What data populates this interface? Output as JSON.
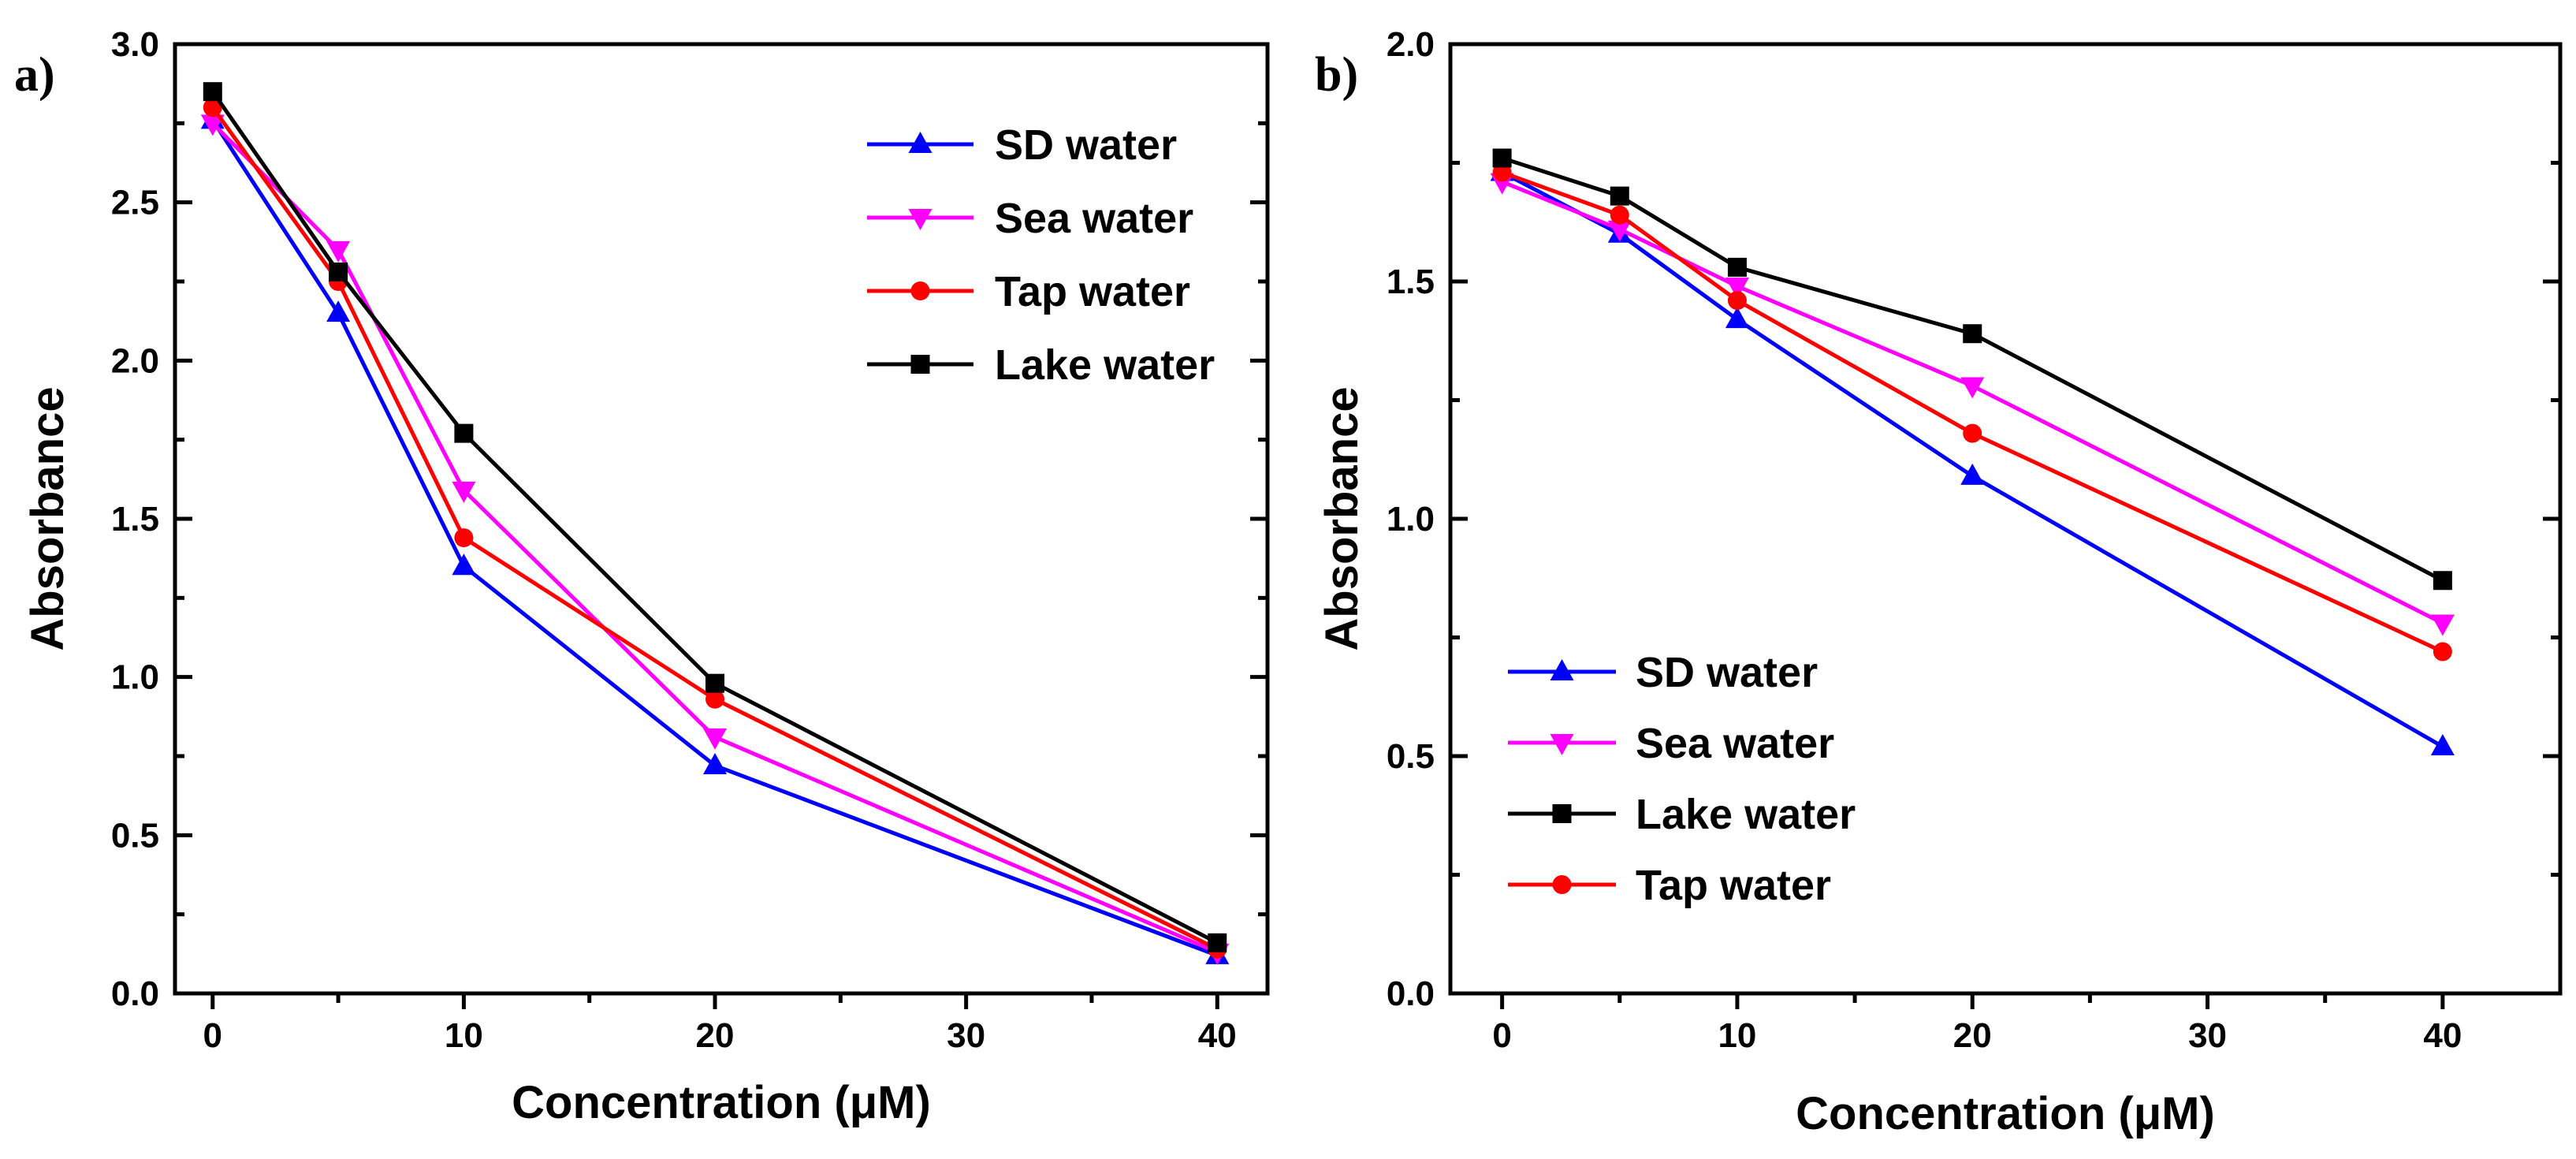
{
  "colors": {
    "SD water": "#0000ff",
    "Sea water": "#ff00ff",
    "Tap water": "#ff0000",
    "Lake water": "#000000"
  },
  "chart_data": [
    {
      "type": "line",
      "panel_label": "a)",
      "xlabel": "Concentration (μM)",
      "ylabel": "Absorbance",
      "xlim": [
        -1.5,
        42
      ],
      "ylim": [
        0.0,
        3.0
      ],
      "xticks": [
        0,
        10,
        20,
        30,
        40
      ],
      "xtick_labels": [
        "0",
        "10",
        "20",
        "30",
        "40"
      ],
      "yticks": [
        0.0,
        0.5,
        1.0,
        1.5,
        2.0,
        2.5,
        3.0
      ],
      "ytick_labels": [
        "0.0",
        "0.5",
        "1.0",
        "1.5",
        "2.0",
        "2.5",
        "3.0"
      ],
      "legend_position": "top-right",
      "legend_order": [
        "SD water",
        "Sea water",
        "Tap water",
        "Lake water"
      ],
      "x": [
        0,
        5,
        10,
        20,
        40
      ],
      "series": [
        {
          "name": "SD water",
          "marker": "triangle-up",
          "values": [
            2.76,
            2.15,
            1.35,
            0.72,
            0.12
          ]
        },
        {
          "name": "Sea water",
          "marker": "triangle-down",
          "values": [
            2.75,
            2.35,
            1.59,
            0.81,
            0.13
          ]
        },
        {
          "name": "Tap water",
          "marker": "circle",
          "values": [
            2.8,
            2.25,
            1.44,
            0.93,
            0.14
          ]
        },
        {
          "name": "Lake water",
          "marker": "square",
          "values": [
            2.85,
            2.28,
            1.77,
            0.98,
            0.16
          ]
        }
      ]
    },
    {
      "type": "line",
      "panel_label": "b)",
      "xlabel": "Concentration (μM)",
      "ylabel": "Absorbance",
      "xlim": [
        -2.2,
        45
      ],
      "ylim": [
        0.0,
        2.0
      ],
      "xticks": [
        0,
        10,
        20,
        30,
        40
      ],
      "xtick_labels": [
        "0",
        "10",
        "20",
        "30",
        "40"
      ],
      "yticks": [
        0.0,
        0.5,
        1.0,
        1.5,
        2.0
      ],
      "ytick_labels": [
        "0.0",
        "0.5",
        "1.0",
        "1.5",
        "2.0"
      ],
      "legend_position": "bottom-left",
      "legend_order": [
        "SD water",
        "Sea water",
        "Lake water",
        "Tap water"
      ],
      "x": [
        0,
        5,
        10,
        20,
        40
      ],
      "series": [
        {
          "name": "SD water",
          "marker": "triangle-up",
          "values": [
            1.73,
            1.6,
            1.42,
            1.09,
            0.52
          ]
        },
        {
          "name": "Sea water",
          "marker": "triangle-down",
          "values": [
            1.71,
            1.61,
            1.49,
            1.28,
            0.78
          ]
        },
        {
          "name": "Tap water",
          "marker": "circle",
          "values": [
            1.73,
            1.64,
            1.46,
            1.18,
            0.72
          ]
        },
        {
          "name": "Lake water",
          "marker": "square",
          "values": [
            1.76,
            1.68,
            1.53,
            1.39,
            0.87
          ]
        }
      ]
    }
  ]
}
